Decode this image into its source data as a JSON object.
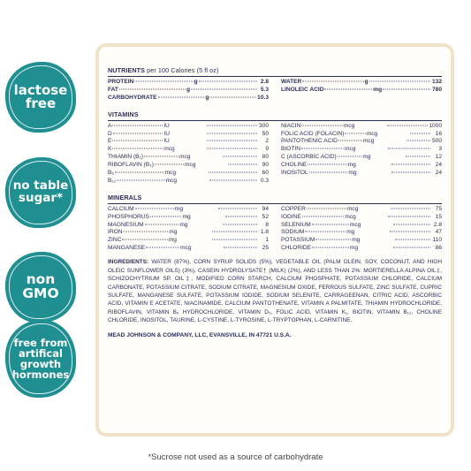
{
  "badges": [
    {
      "text": "lactose\nfree"
    },
    {
      "text": "no table\nsugar*"
    },
    {
      "text": "non\nGMO"
    },
    {
      "text": "free from\nartifical\ngrowth\nhormones"
    }
  ],
  "colors": {
    "badge": "#1f8f92",
    "panel_border": "#f1e3c8",
    "text": "#2a2e5a"
  },
  "nutrients": {
    "title": "NUTRIENTS",
    "subtitle": "per 100 Calories (5 fl oz)",
    "left": [
      {
        "name": "PROTEIN",
        "unit": "g",
        "value": "2.8"
      },
      {
        "name": "FAT",
        "unit": "g",
        "value": "5.3"
      },
      {
        "name": "CARBOHYDRATE",
        "unit": "g",
        "value": "10.3"
      }
    ],
    "right": [
      {
        "name": "WATER",
        "unit": "g",
        "value": "132"
      },
      {
        "name": "LINOLEIC ACID",
        "unit": "mg",
        "value": "780"
      }
    ]
  },
  "vitamins": {
    "title": "VITAMINS",
    "left": [
      {
        "name": "A",
        "unit": "IU",
        "value": "300"
      },
      {
        "name": "D",
        "unit": "IU",
        "value": "50"
      },
      {
        "name": "E",
        "unit": "IU",
        "value": "2"
      },
      {
        "name": "K",
        "unit": "mcg",
        "value": "9"
      },
      {
        "name": "THIAMIN (B₁)",
        "unit": "mcg",
        "value": "80"
      },
      {
        "name": "RIBOFLAVIN (B₂)",
        "unit": "mcg",
        "value": "90"
      },
      {
        "name": "B₆",
        "unit": "mcg",
        "value": "60"
      },
      {
        "name": "B₁₂",
        "unit": "mcg",
        "value": "0.3"
      }
    ],
    "right": [
      {
        "name": "NIACIN",
        "unit": "mcg",
        "value": "1000"
      },
      {
        "name": "FOLIC ACID (FOLACIN)",
        "unit": "mcg",
        "value": "16"
      },
      {
        "name": "PANTOTHENIC ACID",
        "unit": "mcg",
        "value": "500"
      },
      {
        "name": "BIOTIN",
        "unit": "mcg",
        "value": "3"
      },
      {
        "name": "C (ASCORBIC ACID)",
        "unit": "mg",
        "value": "12"
      },
      {
        "name": "CHOLINE",
        "unit": "mg",
        "value": "24"
      },
      {
        "name": "INOSITOL",
        "unit": "mg",
        "value": "24"
      }
    ]
  },
  "minerals": {
    "title": "MINERALS",
    "left": [
      {
        "name": "CALCIUM",
        "unit": "mg",
        "value": "94"
      },
      {
        "name": "PHOSPHORUS",
        "unit": "mg",
        "value": "52"
      },
      {
        "name": "MAGNESIUM",
        "unit": "mg",
        "value": "8"
      },
      {
        "name": "IRON",
        "unit": "mg",
        "value": "1.8"
      },
      {
        "name": "ZINC",
        "unit": "mg",
        "value": "1"
      },
      {
        "name": "MANGANESE",
        "unit": "mcg",
        "value": "25"
      }
    ],
    "right": [
      {
        "name": "COPPER",
        "unit": "mcg",
        "value": "75"
      },
      {
        "name": "IODINE",
        "unit": "mcg",
        "value": "15"
      },
      {
        "name": "SELENIUM",
        "unit": "mcg",
        "value": "2.8"
      },
      {
        "name": "SODIUM",
        "unit": "mg",
        "value": "47"
      },
      {
        "name": "POTASSIUM",
        "unit": "mg",
        "value": "110"
      },
      {
        "name": "CHLORIDE",
        "unit": "mg",
        "value": "86"
      }
    ]
  },
  "ingredients": {
    "label": "INGREDIENTS:",
    "text": "WATER (87%), CORN SYRUP SOLIDS (5%), VEGETABLE OIL (PALM OLEIN, SOY, COCONUT, AND HIGH OLEIC SUNFLOWER OILS) (3%), CASEIN HYDROLYSATE† (MILK) (2%), AND LESS THAN 2%: MORTIERELLA ALPINA OIL‡, SCHIZOCHYTRIUM SP. OIL‡, MODIFIED CORN STARCH, CALCIUM PHOSPHATE, POTASSIUM CHLORIDE, CALCIUM CARBONATE, POTASSIUM CITRATE, SODIUM CITRATE, MAGNESIUM OXIDE, FERROUS SULFATE, ZINC SULFATE, CUPRIC SULFATE, MANGANESE SULFATE, POTASSIUM IODIDE, SODIUM SELENITE, CARRAGEENAN, CITRIC ACID, ASCORBIC ACID, VITAMIN E ACETATE, NIACINAMIDE, CALCIUM PANTOTHENATE, VITAMIN A PALMITATE, THIAMIN HYDROCHLORIDE, RIBOFLAVIN, VITAMIN B₆ HYDROCHLORIDE, VITAMIN D₃, FOLIC ACID, VITAMIN K₁, BIOTIN, VITAMIN B₁₂, CHOLINE CHLORIDE, INOSITOL, TAURINE, L-CYSTINE, L-TYROSINE, L-TRYPTOPHAN, L-CARNITINE."
  },
  "manufacturer": "MEAD JOHNSON & COMPANY, LLC, EVANSVILLE, IN 47721 U.S.A.",
  "footnote": "*Sucrose not used as a source of carbohydrate"
}
